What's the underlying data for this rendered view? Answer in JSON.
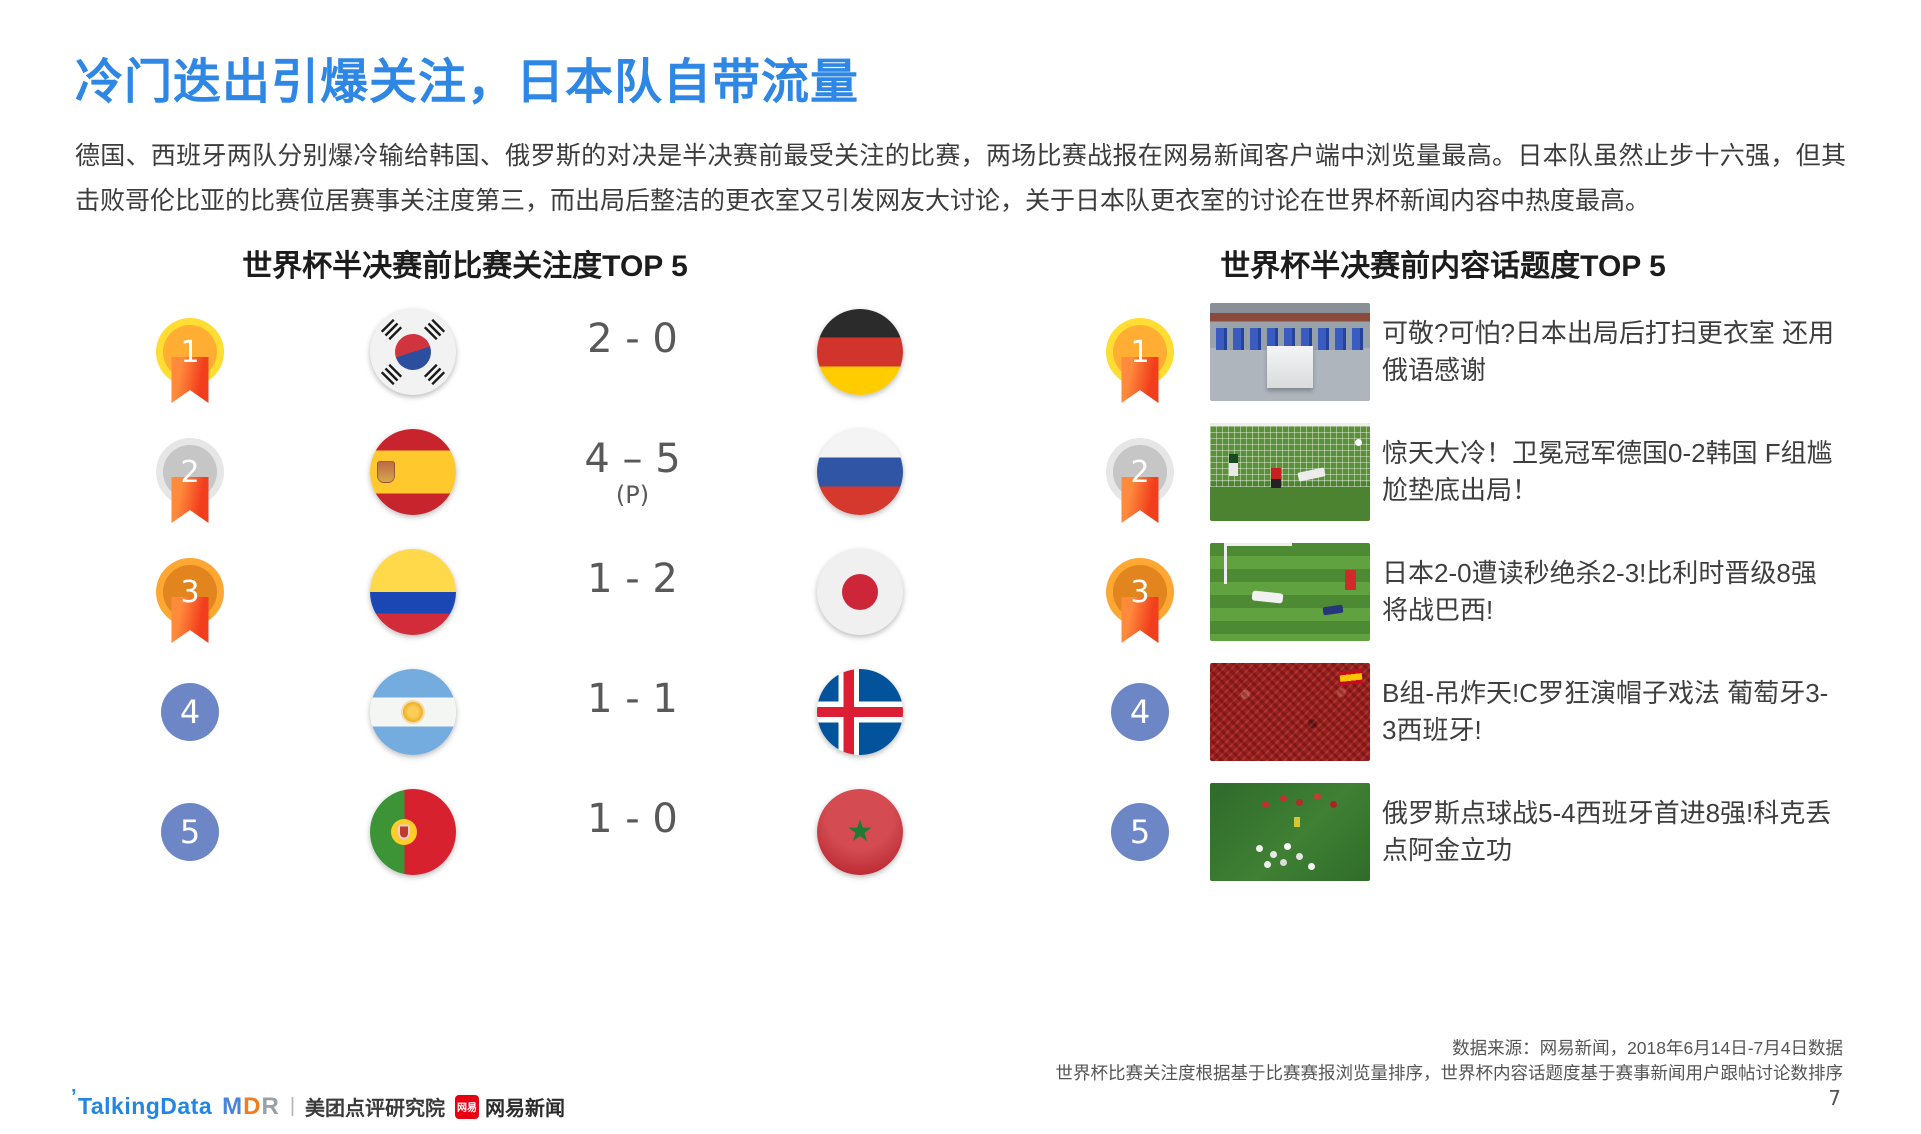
{
  "title": "冷门迭出引爆关注，日本队自带流量",
  "paragraph": "德国、西班牙两队分别爆冷输给韩国、俄罗斯的对决是半决赛前最受关注的比赛，两场比赛战报在网易新闻客户端中浏览量最高。日本队虽然止步十六强，但其击败哥伦比亚的比赛位居赛事关注度第三，而出局后整洁的更衣室又引发网友大讨论，关于日本队更衣室的讨论在世界杯新闻内容中热度最高。",
  "left_section": {
    "header": "世界杯半决赛前比赛关注度TOP 5",
    "rows": [
      {
        "rank": "1",
        "medal": "gold",
        "team_a": "south-korea",
        "score": "2 - 0",
        "score_note": "",
        "team_b": "germany"
      },
      {
        "rank": "2",
        "medal": "silver",
        "team_a": "spain",
        "score": "4 – 5",
        "score_note": "(P)",
        "team_b": "russia"
      },
      {
        "rank": "3",
        "medal": "bronze",
        "team_a": "colombia",
        "score": "1 - 2",
        "score_note": "",
        "team_b": "japan"
      },
      {
        "rank": "4",
        "medal": "plain",
        "team_a": "argentina",
        "score": "1 - 1",
        "score_note": "",
        "team_b": "iceland"
      },
      {
        "rank": "5",
        "medal": "plain",
        "team_a": "portugal",
        "score": "1 - 0",
        "score_note": "",
        "team_b": "morocco"
      }
    ]
  },
  "right_section": {
    "header": "世界杯半决赛前内容话题度TOP 5",
    "rows": [
      {
        "rank": "1",
        "medal": "gold",
        "image": "japan-locker-room",
        "headline": "可敬?可怕?日本出局后打扫更衣室 还用俄语感谢"
      },
      {
        "rank": "2",
        "medal": "silver",
        "image": "germany-vs-korea-goal",
        "headline": "惊天大冷！卫冕冠军德国0-2韩国 F组尴尬垫底出局！"
      },
      {
        "rank": "3",
        "medal": "bronze",
        "image": "japan-vs-belgium-players-down",
        "headline": "日本2-0遭读秒绝杀2-3!比利时晋级8强将战巴西!"
      },
      {
        "rank": "4",
        "medal": "plain",
        "image": "spain-fans-crowd",
        "headline": "B组-吊炸天!C罗狂演帽子戏法 葡萄牙3-3西班牙!"
      },
      {
        "rank": "5",
        "medal": "plain",
        "image": "russia-team-celebration",
        "headline": "俄罗斯点球战5-4西班牙首进8强!科克丢点阿金立功"
      }
    ]
  },
  "footer": {
    "source_line1": "数据来源：网易新闻，2018年6月14日-7月4日数据",
    "source_line2": "世界杯比赛关注度根据基于比赛赛报浏览量排序，世界杯内容话题度基于赛事新闻用户跟帖讨论数排序",
    "page_number": "7",
    "logos": {
      "talkingdata": "TalkingData",
      "mdr_m": "M",
      "mdr_d": "D",
      "mdr_r": "R",
      "separator": "|",
      "meituan": "美团点评研究院",
      "netease_badge": "网易",
      "netease": "网易新闻"
    }
  },
  "colors": {
    "title_blue": "#2E87E4",
    "rank_circle_blue": "#6C86C6",
    "medal_gold": "#FFAE33",
    "medal_gold_ring": "#FFDD33",
    "medal_silver": "#C6C6C6",
    "medal_silver_ring": "#E6E6E6",
    "medal_bronze": "#E2851F",
    "medal_bronze_ring": "#FFA733",
    "ribbon_orange_red": "#F23E1D",
    "netease_red": "#E60012",
    "talkingdata_blue": "#2287E3"
  }
}
